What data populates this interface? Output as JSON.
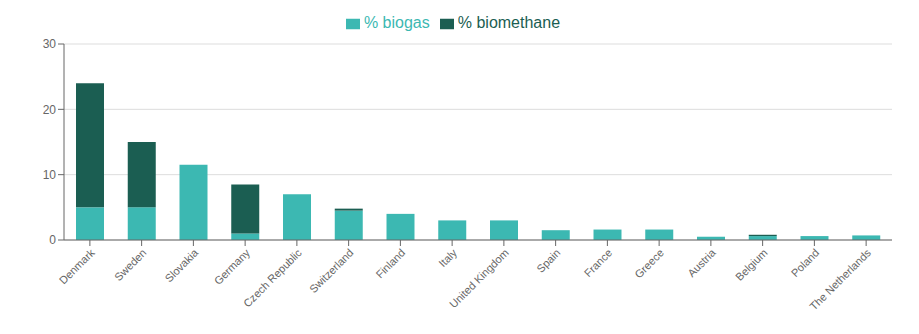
{
  "chart_data": {
    "type": "bar",
    "stacked": true,
    "categories": [
      "Denmark",
      "Sweden",
      "Slovakia",
      "Germany",
      "Czech Republic",
      "Switzerland",
      "Finland",
      "Italy",
      "United Kingdom",
      "Spain",
      "France",
      "Greece",
      "Austria",
      "Belgium",
      "Poland",
      "The Netherlands"
    ],
    "series": [
      {
        "name": "% biogas",
        "color": "#3cb8b2",
        "values": [
          5.0,
          5.0,
          11.5,
          1.0,
          7.0,
          4.5,
          4.0,
          3.0,
          3.0,
          1.5,
          1.6,
          1.6,
          0.5,
          0.6,
          0.6,
          0.7
        ]
      },
      {
        "name": "% biomethane",
        "color": "#1b5e52",
        "values": [
          19.0,
          10.0,
          0.0,
          7.5,
          0.0,
          0.3,
          0.0,
          0.0,
          0.0,
          0.0,
          0.0,
          0.0,
          0.0,
          0.2,
          0.0,
          0.0
        ]
      }
    ],
    "ylim": [
      0,
      30
    ],
    "yticks": [
      0,
      10,
      20,
      30
    ],
    "grid": true,
    "legend": "top"
  }
}
